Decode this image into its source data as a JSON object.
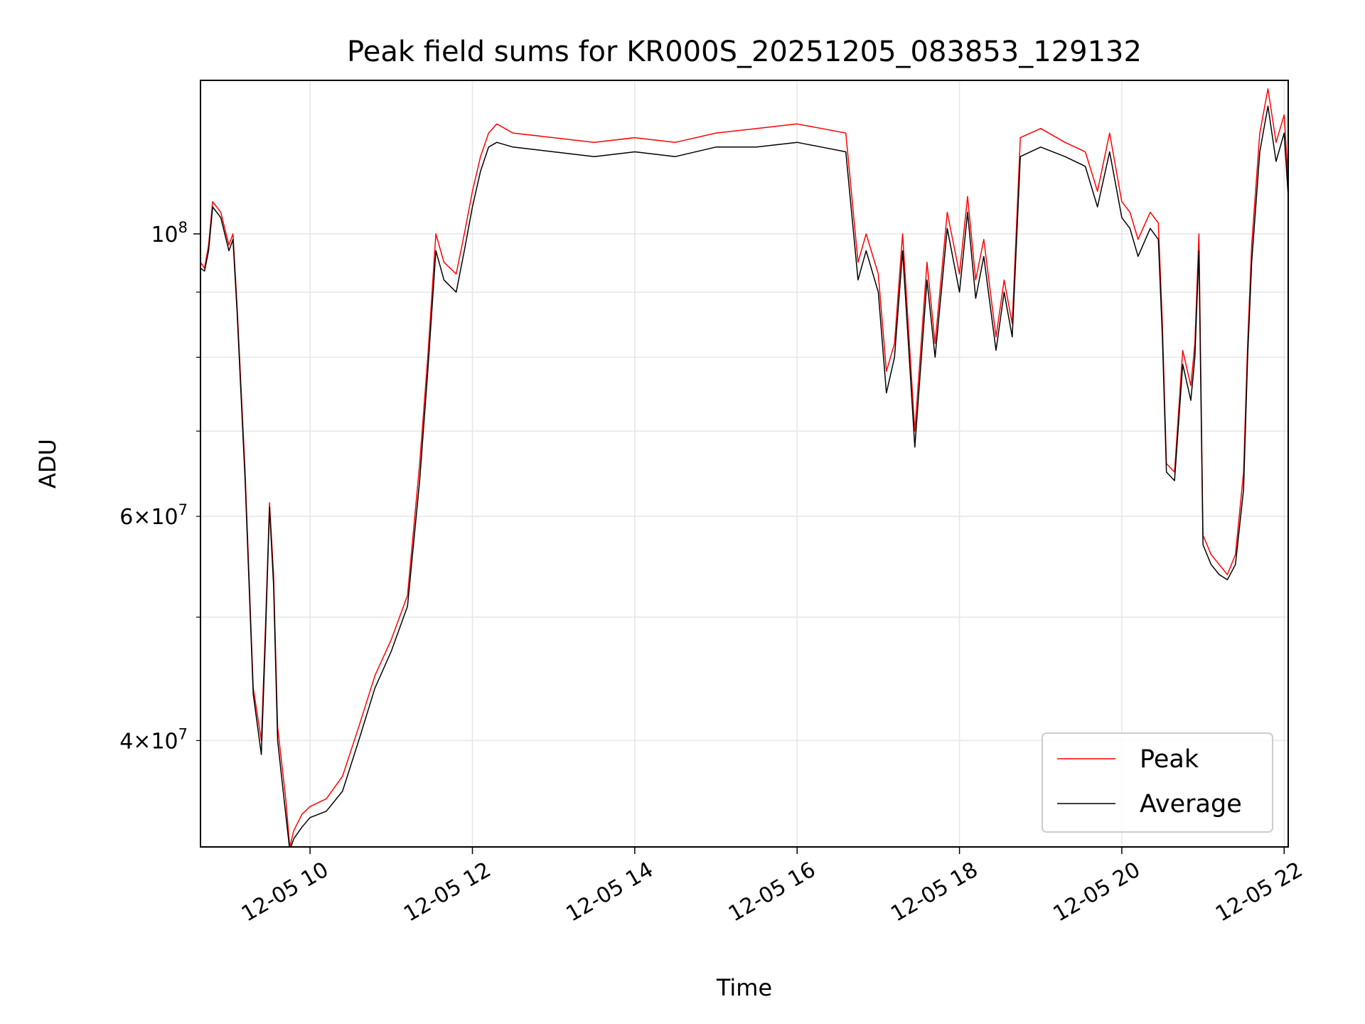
{
  "chart_data": {
    "type": "line",
    "title": "Peak field sums for KR000S_20251205_083853_129132",
    "xlabel": "Time",
    "ylabel": "ADU",
    "yscale": "log",
    "xlim": [
      8.65,
      22.05
    ],
    "ylim": [
      33000000,
      132000000
    ],
    "grid": true,
    "legend_position": "lower-right",
    "x_ticks": [
      {
        "value": 10,
        "label": "12-05 10"
      },
      {
        "value": 12,
        "label": "12-05 12"
      },
      {
        "value": 14,
        "label": "12-05 14"
      },
      {
        "value": 16,
        "label": "12-05 16"
      },
      {
        "value": 18,
        "label": "12-05 18"
      },
      {
        "value": 20,
        "label": "12-05 20"
      },
      {
        "value": 22,
        "label": "12-05 22"
      }
    ],
    "y_major_ticks": [
      {
        "value": 100000000,
        "base": "10",
        "exp": "8"
      }
    ],
    "y_minor_ticks": [
      {
        "value": 40000000,
        "mant": "4",
        "base": "10",
        "exp": "7"
      },
      {
        "value": 60000000,
        "mant": "6",
        "base": "10",
        "exp": "7"
      },
      {
        "value": 50000000
      },
      {
        "value": 70000000
      },
      {
        "value": 80000000
      },
      {
        "value": 90000000
      }
    ],
    "series": [
      {
        "name": "Peak",
        "color": "#ff0000",
        "x": [
          8.65,
          8.7,
          8.75,
          8.8,
          8.9,
          9.0,
          9.05,
          9.1,
          9.2,
          9.3,
          9.4,
          9.45,
          9.5,
          9.55,
          9.6,
          9.7,
          9.75,
          9.8,
          9.9,
          10.0,
          10.2,
          10.4,
          10.6,
          10.8,
          11.0,
          11.2,
          11.35,
          11.45,
          11.55,
          11.65,
          11.8,
          11.9,
          12.0,
          12.1,
          12.2,
          12.3,
          12.5,
          13.0,
          13.5,
          14.0,
          14.5,
          15.0,
          15.5,
          16.0,
          16.3,
          16.6,
          16.75,
          16.85,
          17.0,
          17.1,
          17.2,
          17.3,
          17.45,
          17.6,
          17.7,
          17.85,
          18.0,
          18.1,
          18.2,
          18.3,
          18.45,
          18.55,
          18.65,
          18.75,
          19.0,
          19.3,
          19.55,
          19.7,
          19.85,
          20.0,
          20.1,
          20.2,
          20.35,
          20.45,
          20.5,
          20.55,
          20.65,
          20.75,
          20.85,
          20.9,
          20.95,
          21.0,
          21.1,
          21.2,
          21.3,
          21.4,
          21.5,
          21.55,
          21.6,
          21.7,
          21.8,
          21.9,
          22.0,
          22.05
        ],
        "y": [
          95000000,
          94000000,
          98000000,
          106000000,
          104000000,
          98000000,
          100000000,
          88000000,
          65000000,
          44000000,
          40000000,
          49000000,
          61500000,
          54000000,
          41000000,
          36000000,
          33000000,
          34000000,
          35000000,
          35500000,
          36000000,
          37500000,
          41000000,
          45000000,
          48000000,
          52000000,
          66000000,
          80000000,
          100000000,
          95000000,
          93000000,
          100000000,
          108000000,
          115000000,
          120000000,
          122000000,
          120000000,
          119000000,
          118000000,
          119000000,
          118000000,
          120000000,
          121000000,
          122000000,
          121000000,
          120000000,
          95000000,
          100000000,
          93000000,
          78000000,
          82000000,
          100000000,
          70000000,
          95000000,
          82000000,
          104000000,
          93000000,
          107000000,
          92000000,
          99000000,
          83000000,
          92000000,
          85000000,
          119000000,
          121000000,
          118000000,
          116000000,
          108000000,
          120000000,
          106000000,
          104000000,
          99000000,
          104000000,
          102000000,
          85000000,
          66000000,
          65000000,
          81000000,
          76000000,
          82000000,
          100000000,
          58000000,
          56000000,
          55000000,
          54000000,
          56000000,
          65000000,
          82000000,
          98000000,
          120000000,
          130000000,
          118000000,
          124000000,
          110000000
        ]
      },
      {
        "name": "Average",
        "color": "#000000",
        "x": [
          8.65,
          8.7,
          8.75,
          8.8,
          8.9,
          9.0,
          9.05,
          9.1,
          9.2,
          9.3,
          9.4,
          9.45,
          9.5,
          9.55,
          9.6,
          9.7,
          9.75,
          9.8,
          9.9,
          10.0,
          10.2,
          10.4,
          10.6,
          10.8,
          11.0,
          11.2,
          11.35,
          11.45,
          11.55,
          11.65,
          11.8,
          11.9,
          12.0,
          12.1,
          12.2,
          12.3,
          12.5,
          13.0,
          13.5,
          14.0,
          14.5,
          15.0,
          15.5,
          16.0,
          16.3,
          16.6,
          16.75,
          16.85,
          17.0,
          17.1,
          17.2,
          17.3,
          17.45,
          17.6,
          17.7,
          17.85,
          18.0,
          18.1,
          18.2,
          18.3,
          18.45,
          18.55,
          18.65,
          18.75,
          19.0,
          19.3,
          19.55,
          19.7,
          19.85,
          20.0,
          20.1,
          20.2,
          20.35,
          20.45,
          20.5,
          20.55,
          20.65,
          20.75,
          20.85,
          20.9,
          20.95,
          21.0,
          21.1,
          21.2,
          21.3,
          21.4,
          21.5,
          21.55,
          21.6,
          21.7,
          21.8,
          21.9,
          22.0,
          22.05
        ],
        "y": [
          94000000,
          93500000,
          97000000,
          105000000,
          103000000,
          97000000,
          99000000,
          87000000,
          64000000,
          43500000,
          39000000,
          48000000,
          61000000,
          53000000,
          40000000,
          35000000,
          32800000,
          33500000,
          34200000,
          34800000,
          35200000,
          36500000,
          40000000,
          44000000,
          47000000,
          51000000,
          64000000,
          78000000,
          97000000,
          92000000,
          90000000,
          97000000,
          105000000,
          112000000,
          117000000,
          118000000,
          117000000,
          116000000,
          115000000,
          116000000,
          115000000,
          117000000,
          117000000,
          118000000,
          117000000,
          116000000,
          92000000,
          97000000,
          90000000,
          75000000,
          80000000,
          97000000,
          68000000,
          92000000,
          80000000,
          101000000,
          90000000,
          104000000,
          89000000,
          96000000,
          81000000,
          90000000,
          83000000,
          115000000,
          117000000,
          115000000,
          113000000,
          105000000,
          116000000,
          103000000,
          101000000,
          96000000,
          101000000,
          99000000,
          83000000,
          65000000,
          64000000,
          79000000,
          74000000,
          80000000,
          97000000,
          57000000,
          55000000,
          54000000,
          53500000,
          55000000,
          63000000,
          80000000,
          95000000,
          116000000,
          126000000,
          114000000,
          120000000,
          107000000
        ]
      }
    ]
  }
}
